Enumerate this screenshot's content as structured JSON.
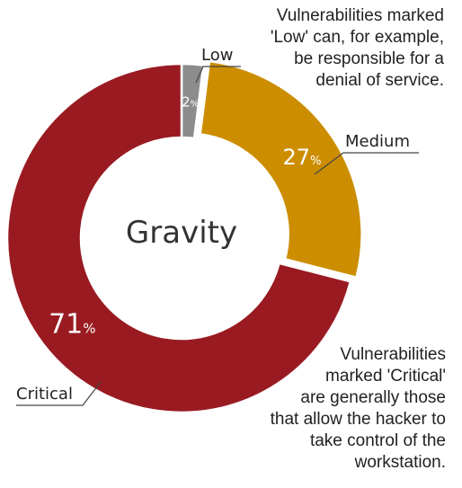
{
  "chart_data": {
    "type": "pie",
    "donut": true,
    "center_label": "Gravity",
    "slices": [
      {
        "name": "Low",
        "value": 2,
        "value_label": "2",
        "unit": "%",
        "color": "#8c8c8c"
      },
      {
        "name": "Medium",
        "value": 27,
        "value_label": "27",
        "unit": "%",
        "color": "#cc8e00"
      },
      {
        "name": "Critical",
        "value": 71,
        "value_label": "71",
        "unit": "%",
        "color": "#991b21"
      }
    ],
    "annotations": {
      "low": "Vulnerabilities marked\n'Low' can, for example,\nbe responsible for a\ndenial of service.",
      "critical": "Vulnerabilities\nmarked 'Critical'\nare generally those\nthat allow the hacker to\ntake control of the\nworkstation."
    }
  }
}
